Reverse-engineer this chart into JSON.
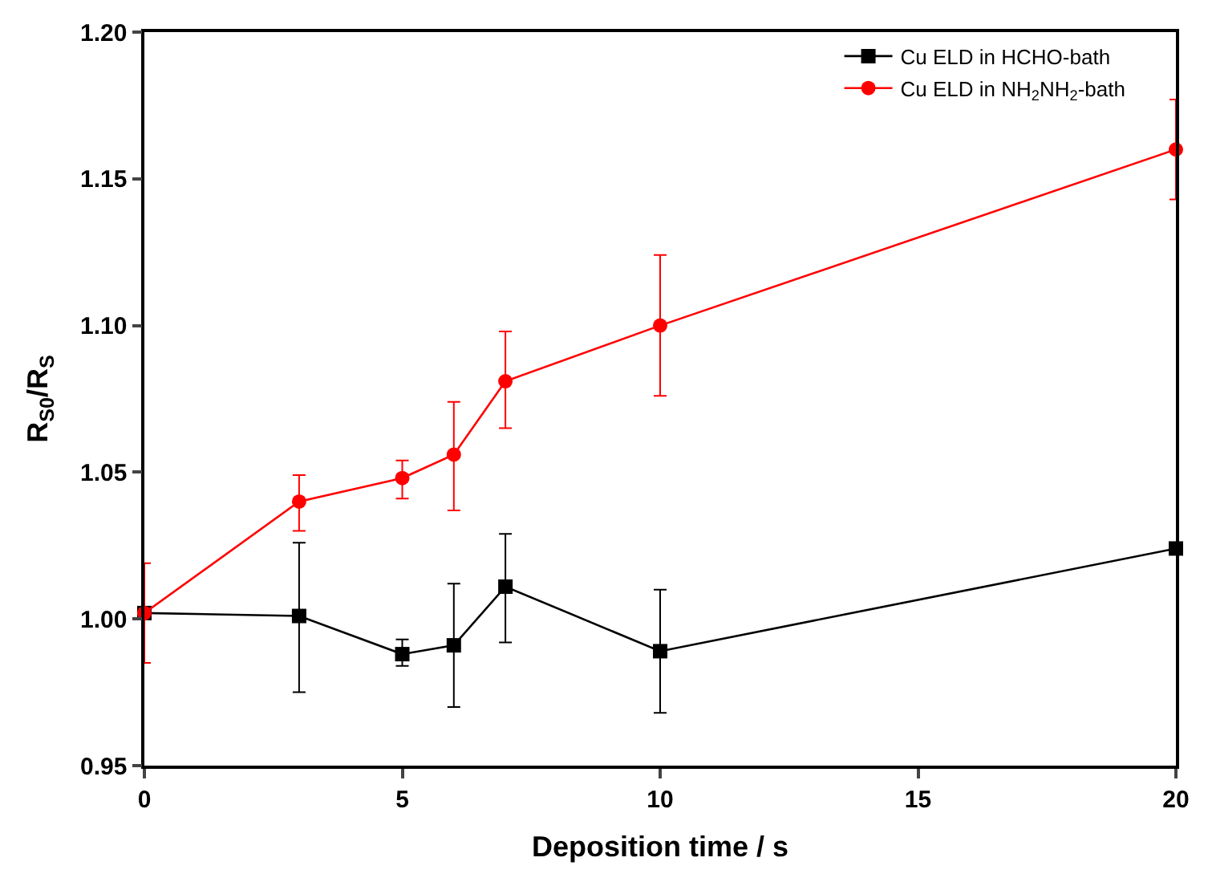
{
  "chart_data": {
    "type": "line",
    "xlabel": "Deposition time / s",
    "ylabel": "R$_{S0}$/R$_{S}$",
    "x": [
      0,
      3,
      5,
      6,
      7,
      10,
      20
    ],
    "series": [
      {
        "name": "Cu ELD in HCHO-bath",
        "color": "#000000",
        "marker": "square",
        "values": [
          1.002,
          1.001,
          0.988,
          0.991,
          1.011,
          0.989,
          1.024
        ],
        "errors": [
          null,
          [
            0.975,
            1.026
          ],
          [
            0.984,
            0.993
          ],
          [
            0.97,
            1.012
          ],
          [
            0.992,
            1.029
          ],
          [
            0.968,
            1.01
          ],
          null
        ]
      },
      {
        "name": "Cu ELD in NH$_{2}$NH$_{2}$-bath",
        "color": "#ff0000",
        "marker": "circle",
        "values": [
          1.002,
          1.04,
          1.048,
          1.056,
          1.081,
          1.1,
          1.16
        ],
        "errors": [
          [
            0.985,
            1.019
          ],
          [
            1.03,
            1.049
          ],
          [
            1.041,
            1.054
          ],
          [
            1.037,
            1.074
          ],
          [
            1.065,
            1.098
          ],
          [
            1.076,
            1.124
          ],
          [
            1.143,
            1.177
          ]
        ]
      }
    ],
    "xlim": [
      0,
      20
    ],
    "xticks": [
      0,
      5,
      10,
      15,
      20
    ],
    "ylim": [
      0.95,
      1.2
    ],
    "yticks": [
      {
        "value": 0.95,
        "label": "0.95"
      },
      {
        "value": 1.0,
        "label": "1.00"
      },
      {
        "value": 1.05,
        "label": "1.05"
      },
      {
        "value": 1.1,
        "label": "1.10"
      },
      {
        "value": 1.15,
        "label": "1.15"
      },
      {
        "value": 1.2,
        "label": "1.20"
      }
    ],
    "legend": "top right",
    "line_style": "solid"
  }
}
